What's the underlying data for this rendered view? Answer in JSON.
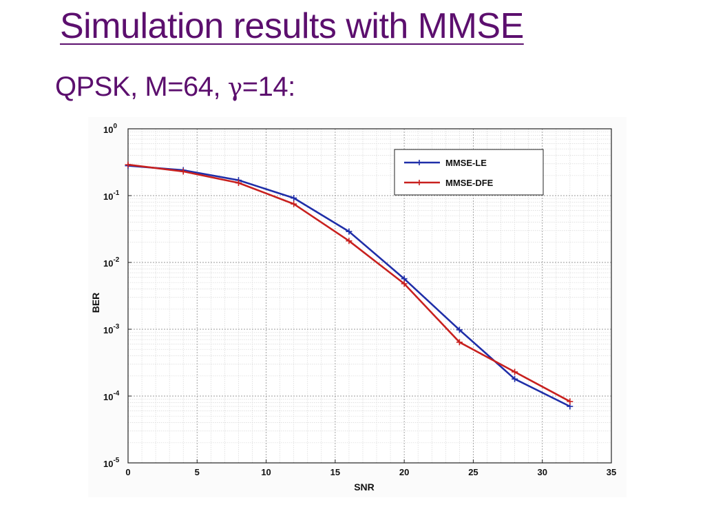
{
  "slide": {
    "title": "Simulation results with MMSE",
    "subtitle_prefix": "QPSK, M=64, ",
    "subtitle_symbol": "γ",
    "subtitle_suffix": "=14:"
  },
  "chart_data": {
    "type": "line",
    "xlabel": "SNR",
    "ylabel": "BER",
    "xlim": [
      0,
      35
    ],
    "ylim": [
      1e-05,
      1
    ],
    "yscale": "log",
    "x_ticks": [
      "0",
      "5",
      "10",
      "15",
      "20",
      "25",
      "30",
      "35"
    ],
    "y_ticks": [
      {
        "base": "10",
        "exp": "0"
      },
      {
        "base": "10",
        "exp": "-1"
      },
      {
        "base": "10",
        "exp": "-2"
      },
      {
        "base": "10",
        "exp": "-3"
      },
      {
        "base": "10",
        "exp": "-4"
      },
      {
        "base": "10",
        "exp": "-5"
      }
    ],
    "grid": true,
    "legend_position": "top-right",
    "series": [
      {
        "name": "MMSE-LE",
        "color": "#1f2ea8",
        "x": [
          0,
          4,
          8,
          12,
          16,
          20,
          24,
          28,
          32
        ],
        "y": [
          0.28,
          0.24,
          0.17,
          0.092,
          0.029,
          0.0057,
          0.00098,
          0.00018,
          7e-05
        ]
      },
      {
        "name": "MMSE-DFE",
        "color": "#c8201e",
        "x": [
          0,
          4,
          8,
          12,
          16,
          20,
          24,
          28,
          32
        ],
        "y": [
          0.29,
          0.23,
          0.155,
          0.075,
          0.021,
          0.0048,
          0.00064,
          0.00023,
          8.3e-05
        ]
      }
    ]
  }
}
